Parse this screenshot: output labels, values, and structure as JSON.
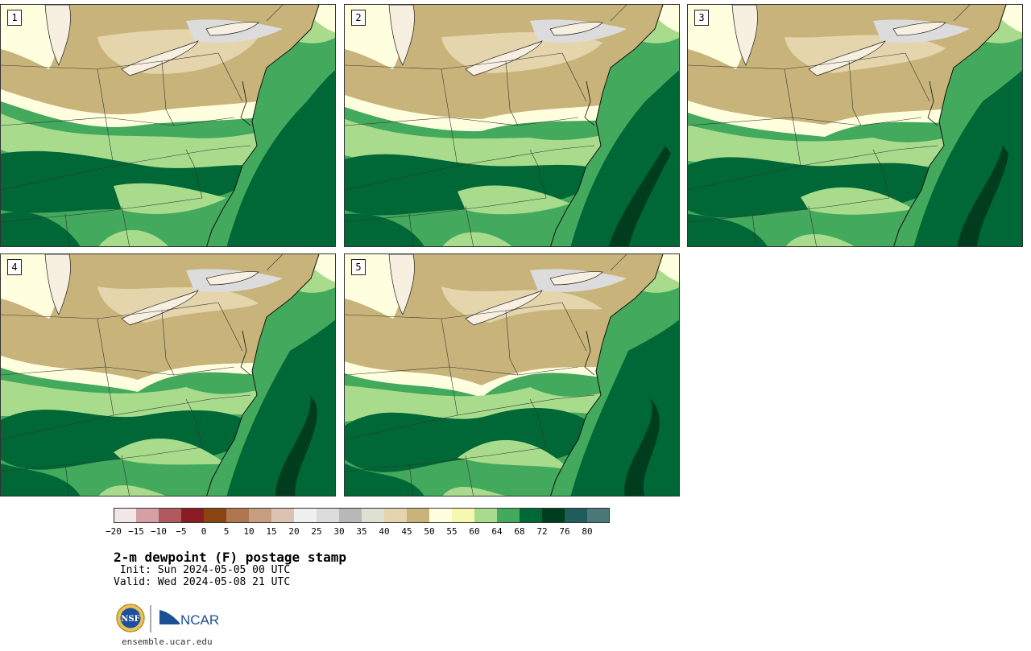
{
  "panels": [
    {
      "label": "1",
      "variant": 0
    },
    {
      "label": "2",
      "variant": 1
    },
    {
      "label": "3",
      "variant": 2
    },
    {
      "label": "4",
      "variant": 3
    },
    {
      "label": "5",
      "variant": 4
    }
  ],
  "colorbar": {
    "colors": [
      "#f2e6e6",
      "#d4a0a5",
      "#b05a60",
      "#8c1c24",
      "#8b4513",
      "#ad7750",
      "#c79e80",
      "#dcc2b0",
      "#f0f0f0",
      "#dcdcdc",
      "#b8b8b8",
      "#e0e0d2",
      "#e5d5ac",
      "#c8b47a",
      "#ffffe0",
      "#f8f7b0",
      "#a8dc8c",
      "#43a95c",
      "#006837",
      "#003c1e",
      "#1f5c5c",
      "#4a7878"
    ],
    "ticks": [
      "−20",
      "−15",
      "−10",
      "−5",
      "0",
      "5",
      "10",
      "15",
      "20",
      "25",
      "30",
      "35",
      "40",
      "45",
      "50",
      "55",
      "60",
      "64",
      "68",
      "72",
      "76",
      "80"
    ]
  },
  "title": "2-m dewpoint (F) postage stamp",
  "init": " Init: Sun 2024-05-05 00 UTC",
  "valid": "Valid: Wed 2024-05-08 21 UTC",
  "logos": {
    "nsf": "NSF",
    "ncar": "NCAR"
  },
  "footer": "ensemble.ucar.edu"
}
